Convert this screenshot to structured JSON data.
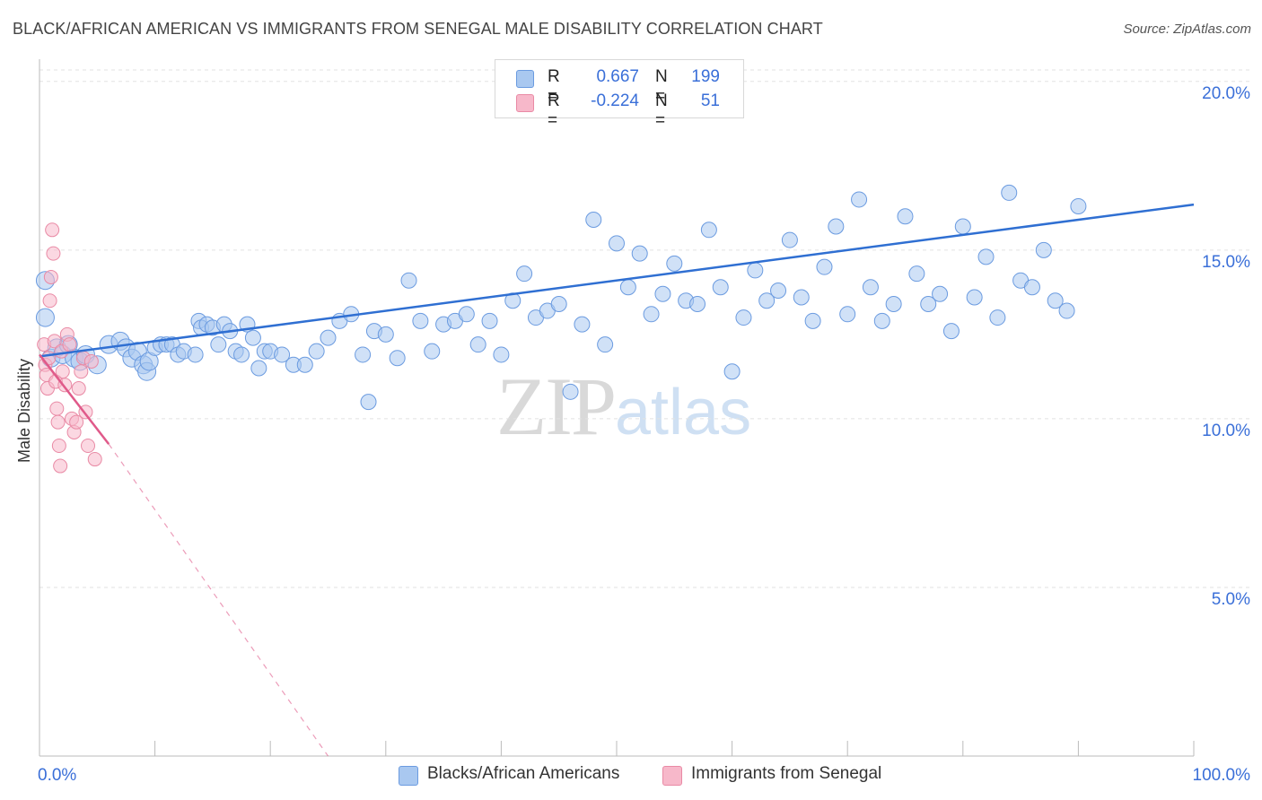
{
  "header": {
    "title": "BLACK/AFRICAN AMERICAN VS IMMIGRANTS FROM SENEGAL MALE DISABILITY CORRELATION CHART",
    "source": "Source: ZipAtlas.com"
  },
  "legend": {
    "rows": [
      {
        "r_label": "R =",
        "r_value": "0.667",
        "n_label": "N =",
        "n_value": "199",
        "color": "#a9c8f0"
      },
      {
        "r_label": "R =",
        "r_value": "-0.224",
        "n_label": "N =",
        "n_value": "51",
        "color": "#f7b8ca"
      }
    ]
  },
  "bottom_legend": [
    {
      "label": "Blacks/African Americans",
      "color": "#a9c8f0"
    },
    {
      "label": "Immigrants from Senegal",
      "color": "#f7b8ca"
    }
  ],
  "watermark": {
    "zip": "ZIP",
    "atlas": "atlas"
  },
  "chart_data": {
    "type": "scatter",
    "title": "BLACK/AFRICAN AMERICAN VS IMMIGRANTS FROM SENEGAL MALE DISABILITY CORRELATION CHART",
    "xlabel": "",
    "ylabel": "Male Disability",
    "xlim": [
      0,
      100
    ],
    "ylim": [
      0,
      20.5
    ],
    "x_tick_labels": [
      "0.0%",
      "100.0%"
    ],
    "y_ticks": [
      5,
      10,
      15,
      20
    ],
    "y_tick_labels": [
      "5.0%",
      "10.0%",
      "15.0%",
      "20.0%"
    ],
    "grid": true,
    "legend_position": "top-center",
    "series": [
      {
        "name": "Blacks/African Americans",
        "color": "#a9c8f0",
        "edge": "#6b9be0",
        "trend": {
          "x": [
            0,
            100
          ],
          "y": [
            11.85,
            16.35
          ],
          "color": "#2f6fd2"
        },
        "points": [
          [
            0.5,
            13.0
          ],
          [
            0.5,
            14.1
          ],
          [
            1,
            11.8
          ],
          [
            1.5,
            12.1
          ],
          [
            2,
            11.9
          ],
          [
            2.5,
            12.2
          ],
          [
            3,
            11.8
          ],
          [
            3.5,
            11.7
          ],
          [
            4,
            11.9
          ],
          [
            5,
            11.6
          ],
          [
            6,
            12.2
          ],
          [
            7,
            12.3
          ],
          [
            7.5,
            12.1
          ],
          [
            8,
            11.8
          ],
          [
            8.5,
            12.0
          ],
          [
            9,
            11.6
          ],
          [
            9.3,
            11.4
          ],
          [
            9.5,
            11.7
          ],
          [
            10,
            12.1
          ],
          [
            10.5,
            12.2
          ],
          [
            11,
            12.2
          ],
          [
            11.5,
            12.2
          ],
          [
            12,
            11.9
          ],
          [
            12.5,
            12.0
          ],
          [
            13.5,
            11.9
          ],
          [
            13.8,
            12.9
          ],
          [
            14,
            12.7
          ],
          [
            14.5,
            12.8
          ],
          [
            15,
            12.7
          ],
          [
            15.5,
            12.2
          ],
          [
            16,
            12.8
          ],
          [
            16.5,
            12.6
          ],
          [
            17,
            12.0
          ],
          [
            17.5,
            11.9
          ],
          [
            18,
            12.8
          ],
          [
            18.5,
            12.4
          ],
          [
            19,
            11.5
          ],
          [
            19.5,
            12.0
          ],
          [
            20,
            12.0
          ],
          [
            21,
            11.9
          ],
          [
            22,
            11.6
          ],
          [
            23,
            11.6
          ],
          [
            24,
            12.0
          ],
          [
            25,
            12.4
          ],
          [
            26,
            12.9
          ],
          [
            27,
            13.1
          ],
          [
            28,
            11.9
          ],
          [
            28.5,
            10.5
          ],
          [
            29,
            12.6
          ],
          [
            30,
            12.5
          ],
          [
            31,
            11.8
          ],
          [
            32,
            14.1
          ],
          [
            33,
            12.9
          ],
          [
            34,
            12.0
          ],
          [
            35,
            12.8
          ],
          [
            36,
            12.9
          ],
          [
            37,
            13.1
          ],
          [
            38,
            12.2
          ],
          [
            39,
            12.9
          ],
          [
            40,
            11.9
          ],
          [
            41,
            13.5
          ],
          [
            42,
            14.3
          ],
          [
            43,
            13.0
          ],
          [
            44,
            13.2
          ],
          [
            45,
            13.4
          ],
          [
            46,
            10.8
          ],
          [
            47,
            12.8
          ],
          [
            48,
            15.9
          ],
          [
            49,
            12.2
          ],
          [
            50,
            15.2
          ],
          [
            51,
            13.9
          ],
          [
            52,
            14.9
          ],
          [
            53,
            13.1
          ],
          [
            54,
            13.7
          ],
          [
            55,
            14.6
          ],
          [
            56,
            13.5
          ],
          [
            57,
            13.4
          ],
          [
            58,
            15.6
          ],
          [
            59,
            13.9
          ],
          [
            60,
            11.4
          ],
          [
            61,
            13.0
          ],
          [
            62,
            14.4
          ],
          [
            63,
            13.5
          ],
          [
            64,
            13.8
          ],
          [
            65,
            15.3
          ],
          [
            66,
            13.6
          ],
          [
            67,
            12.9
          ],
          [
            68,
            14.5
          ],
          [
            69,
            15.7
          ],
          [
            70,
            13.1
          ],
          [
            71,
            16.5
          ],
          [
            72,
            13.9
          ],
          [
            73,
            12.9
          ],
          [
            74,
            13.4
          ],
          [
            75,
            16.0
          ],
          [
            76,
            14.3
          ],
          [
            77,
            13.4
          ],
          [
            78,
            13.7
          ],
          [
            79,
            12.6
          ],
          [
            80,
            15.7
          ],
          [
            81,
            13.6
          ],
          [
            82,
            14.8
          ],
          [
            83,
            13.0
          ],
          [
            84,
            16.7
          ],
          [
            85,
            14.1
          ],
          [
            86,
            13.9
          ],
          [
            87,
            15.0
          ],
          [
            88,
            13.5
          ],
          [
            89,
            13.2
          ],
          [
            90,
            16.3
          ]
        ]
      },
      {
        "name": "Immigrants from Senegal",
        "color": "#f7b8ca",
        "edge": "#e98aa5",
        "trend": {
          "x": [
            0,
            6
          ],
          "y": [
            11.9,
            9.25
          ],
          "color": "#e05a8a",
          "extended_to": [
            25,
            0
          ]
        },
        "points": [
          [
            0.4,
            12.2
          ],
          [
            0.5,
            11.6
          ],
          [
            0.6,
            11.3
          ],
          [
            0.7,
            10.9
          ],
          [
            0.8,
            11.8
          ],
          [
            0.9,
            13.5
          ],
          [
            1.0,
            14.2
          ],
          [
            1.1,
            15.6
          ],
          [
            1.2,
            14.9
          ],
          [
            1.3,
            12.3
          ],
          [
            1.4,
            11.1
          ],
          [
            1.5,
            10.3
          ],
          [
            1.6,
            9.9
          ],
          [
            1.7,
            9.2
          ],
          [
            1.8,
            8.6
          ],
          [
            1.9,
            12.0
          ],
          [
            2.0,
            11.4
          ],
          [
            2.2,
            11.0
          ],
          [
            2.4,
            12.5
          ],
          [
            2.6,
            12.2
          ],
          [
            2.8,
            10.0
          ],
          [
            3.0,
            9.6
          ],
          [
            3.2,
            9.9
          ],
          [
            3.4,
            10.9
          ],
          [
            3.6,
            11.4
          ],
          [
            3.8,
            11.8
          ],
          [
            4.0,
            10.2
          ],
          [
            4.2,
            9.2
          ],
          [
            4.5,
            11.7
          ],
          [
            4.8,
            8.8
          ]
        ]
      }
    ]
  }
}
